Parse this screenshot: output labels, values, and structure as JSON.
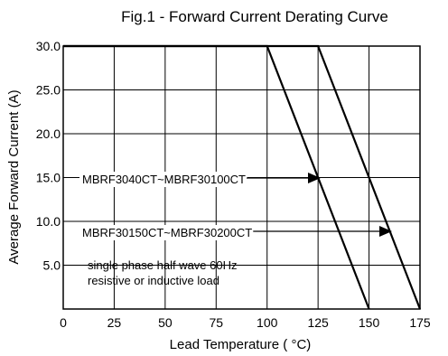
{
  "chart_data": {
    "type": "line",
    "title": "Fig.1 -  Forward Current Derating Curve",
    "xlabel": "Lead Temperature ( °C)",
    "ylabel": "Average Forward Current (A)",
    "xlim": [
      0,
      175
    ],
    "ylim": [
      0,
      30
    ],
    "x_ticks": [
      0,
      25,
      50,
      75,
      100,
      125,
      150,
      175
    ],
    "x_tick_labels": [
      "0",
      "25",
      "50",
      "75",
      "100",
      "125",
      "150",
      "175"
    ],
    "y_ticks": [
      5,
      10,
      15,
      20,
      25,
      30
    ],
    "y_tick_labels": [
      "5.0",
      "10.0",
      "15.0",
      "20.0",
      "25.0",
      "30.0"
    ],
    "grid": true,
    "series": [
      {
        "name": "MBRF3040CT~MBRF30100CT",
        "x": [
          0,
          100,
          150
        ],
        "y": [
          30,
          30,
          0
        ]
      },
      {
        "name": "MBRF30150CT~MBRF30200CT",
        "x": [
          0,
          125,
          175
        ],
        "y": [
          30,
          30,
          0
        ]
      }
    ],
    "annotations": [
      {
        "text": "single phase half wave 60Hz"
      },
      {
        "text": "resistive or inductive load"
      }
    ]
  }
}
